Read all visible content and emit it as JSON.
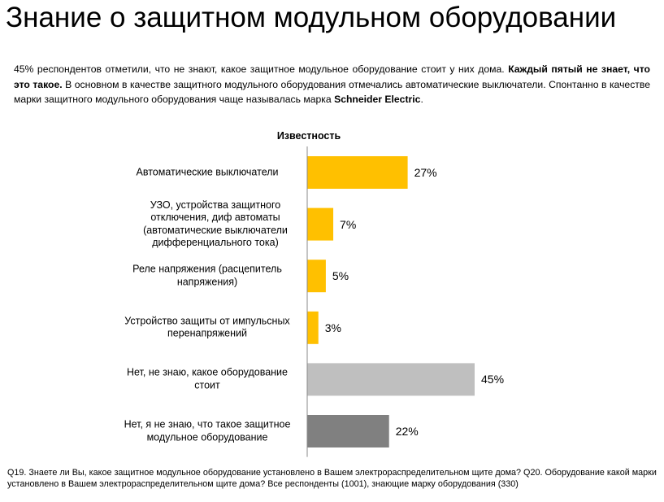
{
  "title": "Знание о защитном модульном оборудовании",
  "summary": {
    "part1": "45% респондентов отметили, что не знают, какое защитное модульное оборудование стоит у них дома. ",
    "bold1": "Каждый пятый не знает, что это такое.",
    "part2": " В основном в качестве защитного модульного оборудования отмечались автоматические выключатели. Спонтанно в качестве марки защитного модульного оборудования чаще называлась марка ",
    "bold2": "Schneider Electric",
    "part3": "."
  },
  "chart_data": {
    "type": "bar",
    "orientation": "horizontal",
    "title": "Известность",
    "categories": [
      "Автоматические выключатели",
      "УЗО, устройства защитного отключения, диф автоматы (автоматические выключатели дифференциального тока)",
      "Реле напряжения (расцепитель напряжения)",
      "Устройство защиты от импульсных перенапряжений",
      "Нет, не знаю, какое оборудование стоит",
      "Нет, я не знаю, что такое защитное модульное оборудование"
    ],
    "values": [
      27,
      7,
      5,
      3,
      45,
      22
    ],
    "value_labels": [
      "27%",
      "7%",
      "5%",
      "3%",
      "45%",
      "22%"
    ],
    "colors": [
      "#FFC000",
      "#FFC000",
      "#FFC000",
      "#FFC000",
      "#BFBFBF",
      "#808080"
    ],
    "xlim": [
      0,
      50
    ],
    "unit": "%",
    "grid": false
  },
  "footnote": "Q19. Знаете ли Вы, какое защитное модульное оборудование установлено в Вашем электрораспределительном щите дома? Q20. Оборудование какой марки установлено в Вашем электрораспределительном щите дома? Все респонденты (1001), знающие марку оборудования (330)"
}
